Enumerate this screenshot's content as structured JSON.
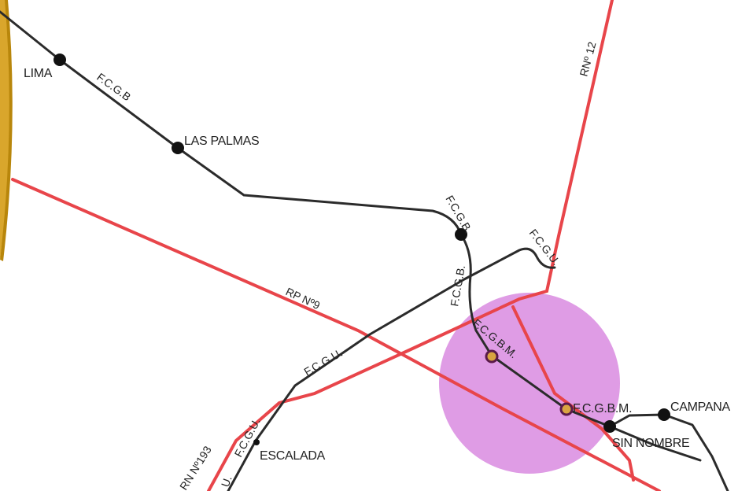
{
  "colors": {
    "railway": "#2b2b2b",
    "road": "#e8454a",
    "highlight_zone": "#d98be0",
    "station_fill": "#111111",
    "marked_station_fill": "#d9a441",
    "gold_frame": "#d9a62c"
  },
  "stations": {
    "lima": "LIMA",
    "las_palmas": "LAS PALMAS",
    "fcgbm": "F.C.G.B.M.",
    "campana": "CAMPANA",
    "sin_nombre": "SIN NOMBRE",
    "escalada": "ESCALADA"
  },
  "railways": {
    "fcgb_top": "F.C.G.B",
    "fcgb_mid": "F.C.G.B.",
    "fcgb_vertical": "F.C.G.B.",
    "fcgu_top": "F.C.G.U.",
    "fcgu_mid": "F.C.G.U.",
    "fcgu_lower": "F.C.G.U.",
    "fcgu_bottom": "U.",
    "fcgbm_diag": "F.C.G.B.M."
  },
  "roads": {
    "rn12": "RNº 12",
    "rp9": "RP Nº9",
    "rn193": "RN Nº193"
  }
}
